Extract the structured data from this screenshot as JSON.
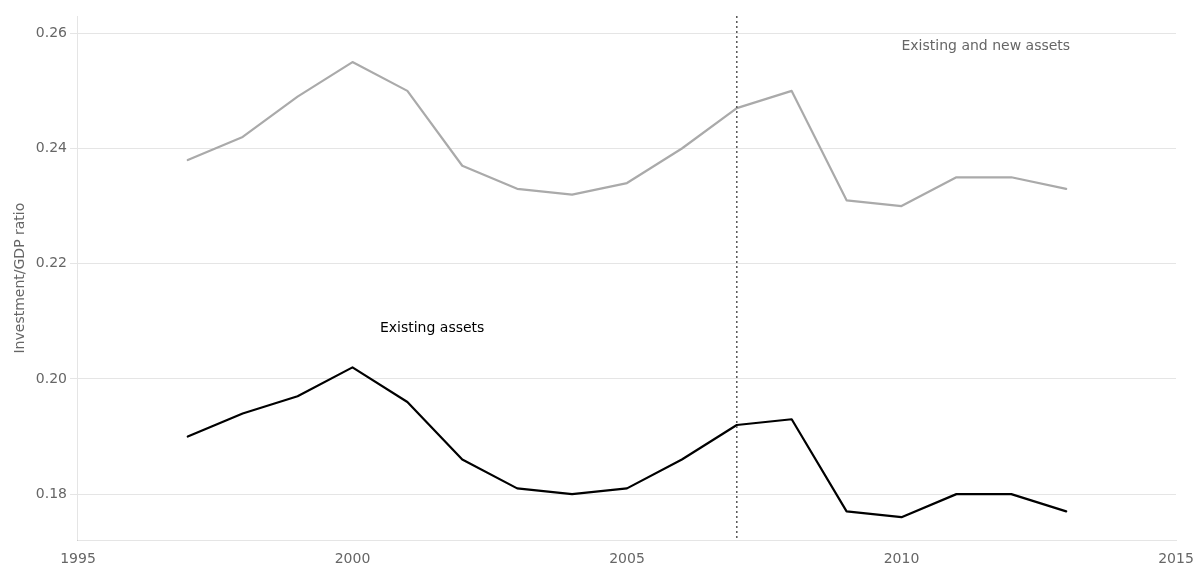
{
  "chart_data": {
    "type": "line",
    "y_label": "Investment/GDP ratio",
    "x": [
      1997,
      1998,
      1999,
      2000,
      2001,
      2002,
      2003,
      2004,
      2005,
      2006,
      2007,
      2008,
      2009,
      2010,
      2011,
      2012,
      2013
    ],
    "series": [
      {
        "color": "#000000",
        "values": [
          0.19,
          0.194,
          0.197,
          0.202,
          0.196,
          0.186,
          0.181,
          0.18,
          0.181,
          0.186,
          0.192,
          0.193,
          0.177,
          0.176,
          0.18,
          0.18,
          0.177
        ]
      },
      {
        "color": "#aaaaaa",
        "values": [
          0.238,
          0.242,
          0.249,
          0.255,
          0.25,
          0.237,
          0.233,
          0.232,
          0.234,
          0.24,
          0.247,
          0.25,
          0.231,
          0.23,
          0.235,
          0.235,
          0.233
        ]
      }
    ],
    "xlim": [
      1995,
      2015
    ],
    "xticks": [
      1995,
      2000,
      2005,
      2010,
      2015
    ],
    "ylim": [
      0.172,
      0.263
    ],
    "yticks": [
      {
        "value": 0.18,
        "label": "0.18"
      },
      {
        "value": 0.2,
        "label": "0.20"
      },
      {
        "value": 0.22,
        "label": "0.22"
      },
      {
        "value": 0.24,
        "label": "0.24"
      },
      {
        "value": 0.26,
        "label": "0.26"
      }
    ],
    "grid": "y",
    "vlines": [
      {
        "x": 2007,
        "color": "#555555",
        "line_style": "dotted"
      }
    ],
    "annotations": [
      {
        "text": "Existing assets",
        "x": 2000.5,
        "y": 0.2075,
        "color": "#000000"
      },
      {
        "text": "Existing and new assets",
        "x": 2010.0,
        "y": 0.2565,
        "color": "#666666"
      }
    ]
  }
}
